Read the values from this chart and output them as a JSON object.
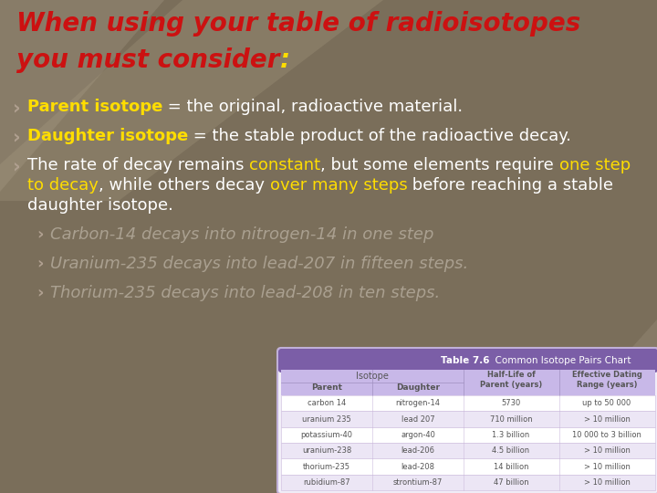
{
  "bg_color": "#7a6e5a",
  "title_line1": "When using your table of radioisotopes",
  "title_line2_main": "you must consider",
  "title_line2_colon": ":",
  "title_color": "#cc1111",
  "title_colon_color": "#ffdd00",
  "bullet_arrow_color": "#b0a090",
  "bullet1_bold": "Parent isotope",
  "bullet1_rest": " = the original, radioactive material.",
  "bullet2_bold": "Daughter isotope",
  "bullet2_rest": " = the stable product of the radioactive decay.",
  "sub_bullets": [
    "Carbon-14 decays into nitrogen-14 in one step",
    "Uranium-235 decays into lead-207 in fifteen steps.",
    "Thorium-235 decays into lead-208 in ten steps."
  ],
  "table_title_bold": "Table 7.6",
  "table_title_rest": "  Common Isotope Pairs Chart",
  "table_header_bg": "#7b5ea7",
  "table_subheader_bg": "#c8b8e8",
  "table_alt_row_bg": "#ece6f5",
  "table_white_row_bg": "#ffffff",
  "table_data": [
    [
      "carbon 14",
      "nitrogen-14",
      "5730",
      "up to 50 000"
    ],
    [
      "uranium 235",
      "lead 207",
      "710 million",
      "> 10 million"
    ],
    [
      "potassium-40",
      "argon-40",
      "1.3 billion",
      "10 000 to 3 billion"
    ],
    [
      "uranium-238",
      "lead-206",
      "4.5 billion",
      "> 10 million"
    ],
    [
      "thorium-235",
      "lead-208",
      "14 billion",
      "> 10 million"
    ],
    [
      "rubidium-87",
      "strontium-87",
      "47 billion",
      "> 10 million"
    ]
  ],
  "yellow": "#ffdd00",
  "white": "#ffffff",
  "dark_gray": "#555555"
}
